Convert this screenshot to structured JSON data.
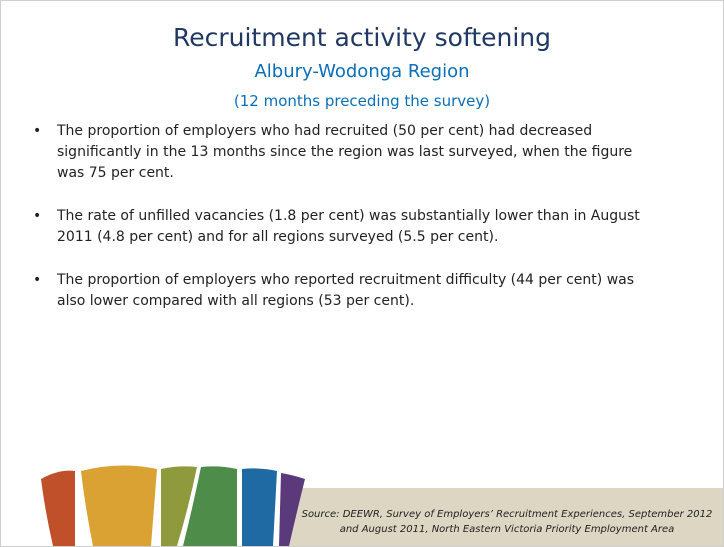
{
  "title": "Recruitment activity softening",
  "subtitle": "Albury-Wodonga Region",
  "period": "(12 months preceding the survey)",
  "bullets": [
    "The proportion of employers who had recruited (50 per cent) had decreased significantly in the 13 months since the region was last surveyed, when the figure was 75 per cent.",
    "The rate of unfilled vacancies (1.8 per cent) was substantially lower than in August 2011 (4.8 per cent) and for all regions surveyed (5.5 per cent).",
    "The proportion of employers who reported recruitment difficulty (44 per cent) was also lower compared with all regions (53 per cent)."
  ],
  "source": "Source: DEEWR, Survey of Employers’ Recruitment Experiences, September 2012 and August 2011, North Eastern Victoria Priority Employment Area"
}
